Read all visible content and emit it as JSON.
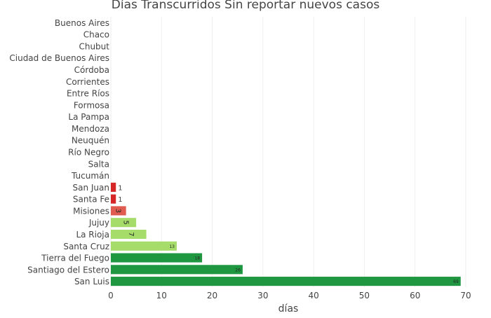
{
  "chart_data": {
    "type": "bar",
    "orientation": "horizontal",
    "title": "Días Transcurridos Sin reportar nuevos casos",
    "xlabel": "días",
    "ylabel": "",
    "xlim": [
      0,
      70
    ],
    "xticks": [
      0,
      10,
      20,
      30,
      40,
      50,
      60,
      70
    ],
    "grid": true,
    "categories": [
      "Buenos Aires",
      "Chaco",
      "Chubut",
      "Ciudad de Buenos Aires",
      "Córdoba",
      "Corrientes",
      "Entre Ríos",
      "Formosa",
      "La Pampa",
      "Mendoza",
      "Neuquén",
      "Río Negro",
      "Salta",
      "Tucumán",
      "San Juan",
      "Santa Fe",
      "Misiones",
      "Jujuy",
      "La Rioja",
      "Santa Cruz",
      "Tierra del Fuego",
      "Santiago del Estero",
      "San Luis"
    ],
    "values": [
      null,
      null,
      null,
      null,
      null,
      null,
      null,
      null,
      null,
      null,
      null,
      null,
      null,
      null,
      1,
      1,
      3,
      5,
      7,
      13,
      18,
      26,
      69
    ],
    "data_labels": [
      "",
      "",
      "",
      "",
      "",
      "",
      "",
      "",
      "",
      "",
      "",
      "",
      "",
      "",
      "1",
      "1",
      "3",
      "5",
      "7",
      "13",
      "18",
      "26",
      "69"
    ],
    "bar_colors": [
      "#d62728",
      "#d62728",
      "#d62728",
      "#d62728",
      "#d62728",
      "#d62728",
      "#d62728",
      "#d62728",
      "#d62728",
      "#d62728",
      "#d62728",
      "#d62728",
      "#d62728",
      "#d62728",
      "#d62728",
      "#d62728",
      "#e05c50",
      "#a6dc6a",
      "#a6dc6a",
      "#a6dc6a",
      "#1f9640",
      "#1f9640",
      "#1f9640"
    ]
  }
}
